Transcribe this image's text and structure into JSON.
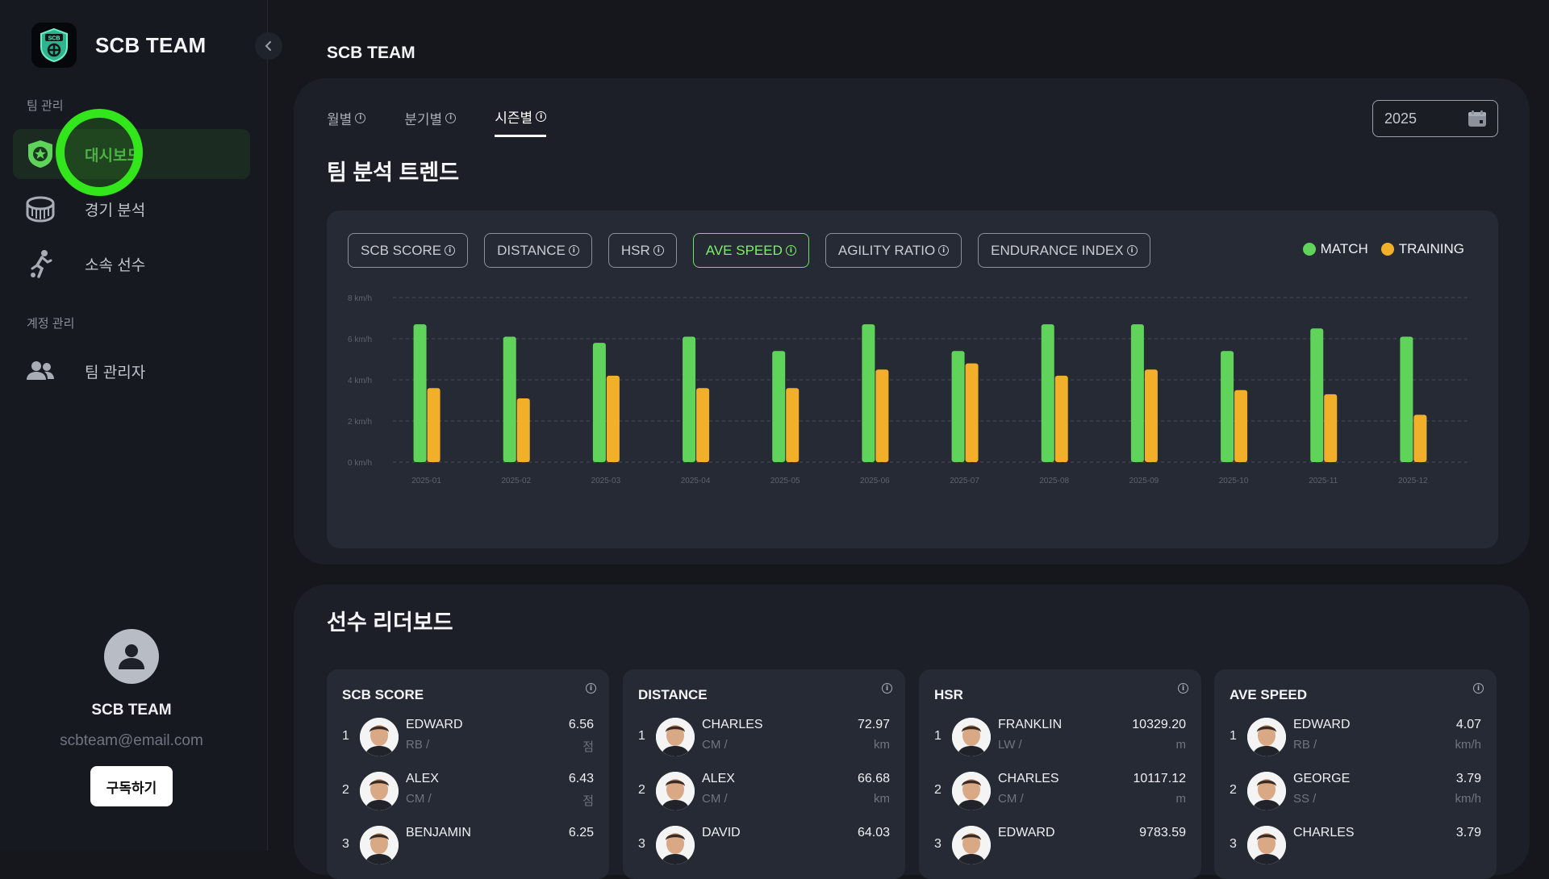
{
  "app": {
    "name": "SCB TEAM"
  },
  "sidebar": {
    "sections": [
      "팀 관리",
      "계정 관리"
    ],
    "items": [
      {
        "label": "대시보드",
        "icon": "shield-star-icon",
        "active": true
      },
      {
        "label": "경기 분석",
        "icon": "stadium-icon",
        "active": false
      },
      {
        "label": "소속 선수",
        "icon": "running-player-icon",
        "active": false
      },
      {
        "label": "팀 관리자",
        "icon": "people-icon",
        "active": false
      }
    ],
    "profile": {
      "name": "SCB TEAM",
      "email": "scbteam@email.com",
      "subscribe_label": "구독하기"
    }
  },
  "header": {
    "title": "SCB TEAM"
  },
  "trend": {
    "tabs": [
      {
        "label": "월별",
        "active": false
      },
      {
        "label": "분기별",
        "active": false
      },
      {
        "label": "시즌별",
        "active": true
      }
    ],
    "year": "2025",
    "title": "팀 분석 트렌드",
    "metrics": [
      {
        "label": "SCB SCORE",
        "active": false
      },
      {
        "label": "DISTANCE",
        "active": false
      },
      {
        "label": "HSR",
        "active": false
      },
      {
        "label": "AVE SPEED",
        "active": true
      },
      {
        "label": "AGILITY RATIO",
        "active": false
      },
      {
        "label": "ENDURANCE INDEX",
        "active": false
      }
    ],
    "legend": {
      "match": "MATCH",
      "training": "TRAINING"
    },
    "colors": {
      "match": "#5fd35a",
      "training": "#f2b02a",
      "accent": "#6fe35e"
    }
  },
  "chart_data": {
    "type": "bar",
    "categories": [
      "2025-01",
      "2025-02",
      "2025-03",
      "2025-04",
      "2025-05",
      "2025-06",
      "2025-07",
      "2025-08",
      "2025-09",
      "2025-10",
      "2025-11",
      "2025-12"
    ],
    "series": [
      {
        "name": "MATCH",
        "values": [
          6.7,
          6.1,
          5.8,
          6.1,
          5.4,
          6.7,
          5.4,
          6.7,
          6.7,
          5.4,
          6.5,
          6.1
        ]
      },
      {
        "name": "TRAINING",
        "values": [
          3.6,
          3.1,
          4.2,
          3.6,
          3.6,
          4.5,
          4.8,
          4.2,
          4.5,
          3.5,
          3.3,
          2.3
        ]
      }
    ],
    "ylim": [
      0,
      8
    ],
    "yticks": [
      "0 km/h",
      "2 km/h",
      "4 km/h",
      "6 km/h",
      "8 km/h"
    ],
    "grid": true,
    "legend_position": "top-right"
  },
  "leaderboard": {
    "title": "선수 리더보드",
    "boards": [
      {
        "title": "SCB SCORE",
        "rows": [
          {
            "rank": "1",
            "name": "EDWARD",
            "position": "RB /",
            "value": "6.56",
            "unit": "점"
          },
          {
            "rank": "2",
            "name": "ALEX",
            "position": "CM /",
            "value": "6.43",
            "unit": "점"
          },
          {
            "rank": "3",
            "name": "BENJAMIN",
            "position": "",
            "value": "6.25",
            "unit": ""
          }
        ]
      },
      {
        "title": "DISTANCE",
        "rows": [
          {
            "rank": "1",
            "name": "CHARLES",
            "position": "CM /",
            "value": "72.97",
            "unit": "km"
          },
          {
            "rank": "2",
            "name": "ALEX",
            "position": "CM /",
            "value": "66.68",
            "unit": "km"
          },
          {
            "rank": "3",
            "name": "DAVID",
            "position": "",
            "value": "64.03",
            "unit": ""
          }
        ]
      },
      {
        "title": "HSR",
        "rows": [
          {
            "rank": "1",
            "name": "FRANKLIN",
            "position": "LW /",
            "value": "10329.20",
            "unit": "m"
          },
          {
            "rank": "2",
            "name": "CHARLES",
            "position": "CM /",
            "value": "10117.12",
            "unit": "m"
          },
          {
            "rank": "3",
            "name": "EDWARD",
            "position": "",
            "value": "9783.59",
            "unit": ""
          }
        ]
      },
      {
        "title": "AVE SPEED",
        "rows": [
          {
            "rank": "1",
            "name": "EDWARD",
            "position": "RB /",
            "value": "4.07",
            "unit": "km/h"
          },
          {
            "rank": "2",
            "name": "GEORGE",
            "position": "SS /",
            "value": "3.79",
            "unit": "km/h"
          },
          {
            "rank": "3",
            "name": "CHARLES",
            "position": "",
            "value": "3.79",
            "unit": ""
          }
        ]
      }
    ]
  }
}
